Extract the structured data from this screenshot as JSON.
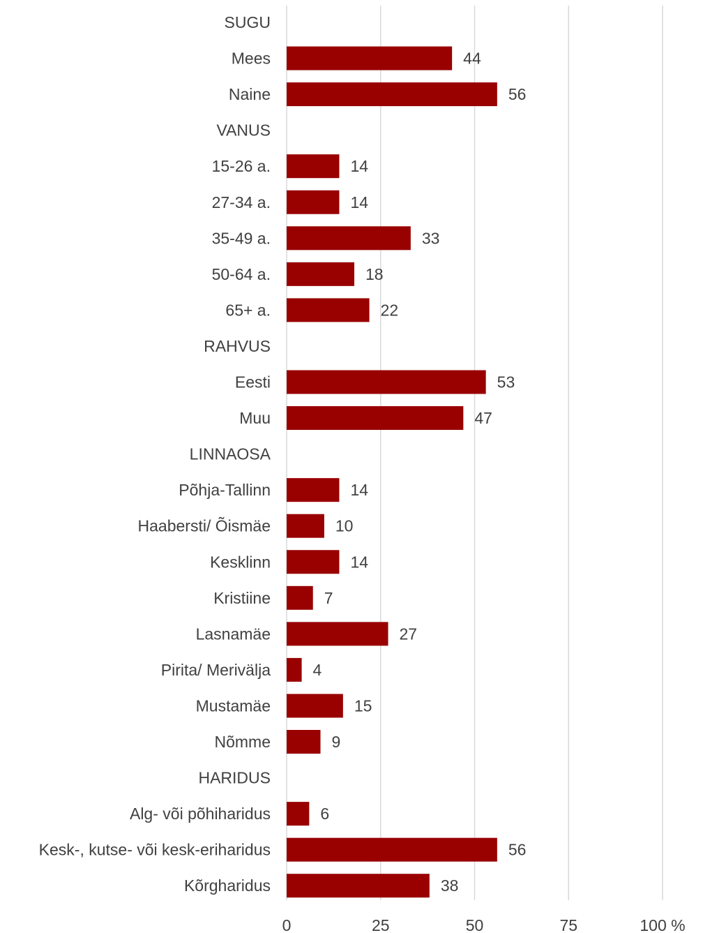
{
  "chart_data": {
    "type": "bar",
    "orientation": "horizontal",
    "categories": [
      "SUGU",
      "Mees",
      "Naine",
      "VANUS",
      "15-26 a.",
      "27-34 a.",
      "35-49 a.",
      "50-64 a.",
      "65+ a.",
      "RAHVUS",
      "Eesti",
      "Muu",
      "LINNAOSA",
      "Põhja-Tallinn",
      "Haabersti/ Õismäe",
      "Kesklinn",
      "Kristiine",
      "Lasnamäe",
      "Pirita/ Merivälja",
      "Mustamäe",
      "Nõmme",
      "HARIDUS",
      "Alg- või põhiharidus",
      "Kesk-, kutse- või kesk-eriharidus",
      "Kõrgharidus"
    ],
    "values": [
      null,
      44,
      56,
      null,
      14,
      14,
      33,
      18,
      22,
      null,
      53,
      47,
      null,
      14,
      10,
      14,
      7,
      27,
      4,
      15,
      9,
      null,
      6,
      56,
      38
    ],
    "xlim": [
      0,
      100
    ],
    "xticks": [
      0,
      25,
      50,
      75,
      100
    ],
    "xtick_labels": [
      "0",
      "25",
      "50",
      "75",
      "100 %"
    ],
    "grid": "vertical",
    "legend": "none",
    "bar_color": "#990000",
    "title": "",
    "xlabel": "",
    "ylabel": ""
  }
}
